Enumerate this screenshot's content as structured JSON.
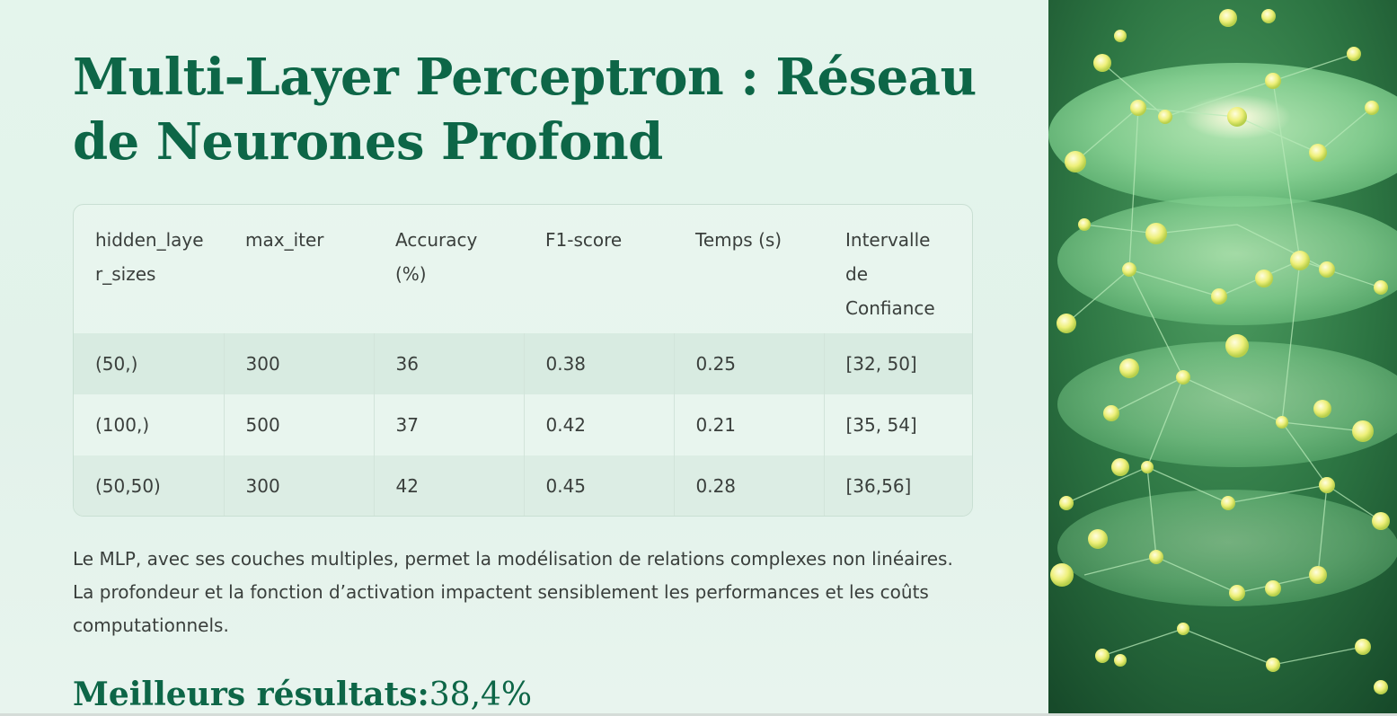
{
  "slide": {
    "title": "Multi-Layer Perceptron : Réseau de Neurones Profond",
    "table": {
      "headers": [
        "hidden_layer_sizes",
        "max_iter",
        "Accuracy (%)",
        "F1-score",
        "Temps (s)",
        "Intervalle de Confiance"
      ],
      "rows": [
        [
          "(50,)",
          "300",
          "36",
          "0.38",
          "0.25",
          "[32, 50]"
        ],
        [
          "(100,)",
          "500",
          "37",
          "0.42",
          "0.21",
          "[35, 54]"
        ],
        [
          "(50,50)",
          "300",
          "42",
          "0.45",
          "0.28",
          "[36,56]"
        ]
      ]
    },
    "description": "Le MLP, avec ses couches multiples, permet la modélisation de relations complexes non linéaires. La profondeur et la fonction d’activation impactent sensiblement les performances et les coûts computationnels.",
    "best_label": "Meilleurs résultats:",
    "best_value": "38,4%"
  },
  "image": {
    "icon": "neural-network-illustration",
    "colors": {
      "background": "#1f5a34",
      "disc": "#7ccf8e",
      "node": "#e8f06a",
      "link": "#a6e0b0"
    }
  }
}
